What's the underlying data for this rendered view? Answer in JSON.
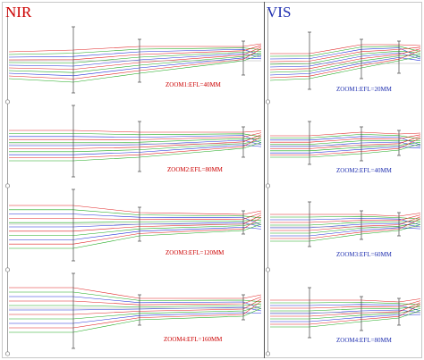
{
  "panels": {
    "nir": {
      "title": "NIR",
      "title_color": "#cc0000",
      "label_color": "#cc0000",
      "zooms": [
        {
          "label": "ZOOM1:EFL=40MM"
        },
        {
          "label": "ZOOM2:EFL=80MM"
        },
        {
          "label": "ZOOM3:EFL=120MM"
        },
        {
          "label": "ZOOM4:EFL=160MM"
        }
      ]
    },
    "vis": {
      "title": "VIS",
      "title_color": "#1f2fb0",
      "label_color": "#1f2fb0",
      "zooms": [
        {
          "label": "ZOOM1:EFL=20MM"
        },
        {
          "label": "ZOOM2:EFL=40MM"
        },
        {
          "label": "ZOOM3:EFL=60MM"
        },
        {
          "label": "ZOOM4:EFL=80MM"
        }
      ]
    }
  },
  "ray_colors": [
    "#e02020",
    "#1aa81a",
    "#1f2fd8"
  ]
}
